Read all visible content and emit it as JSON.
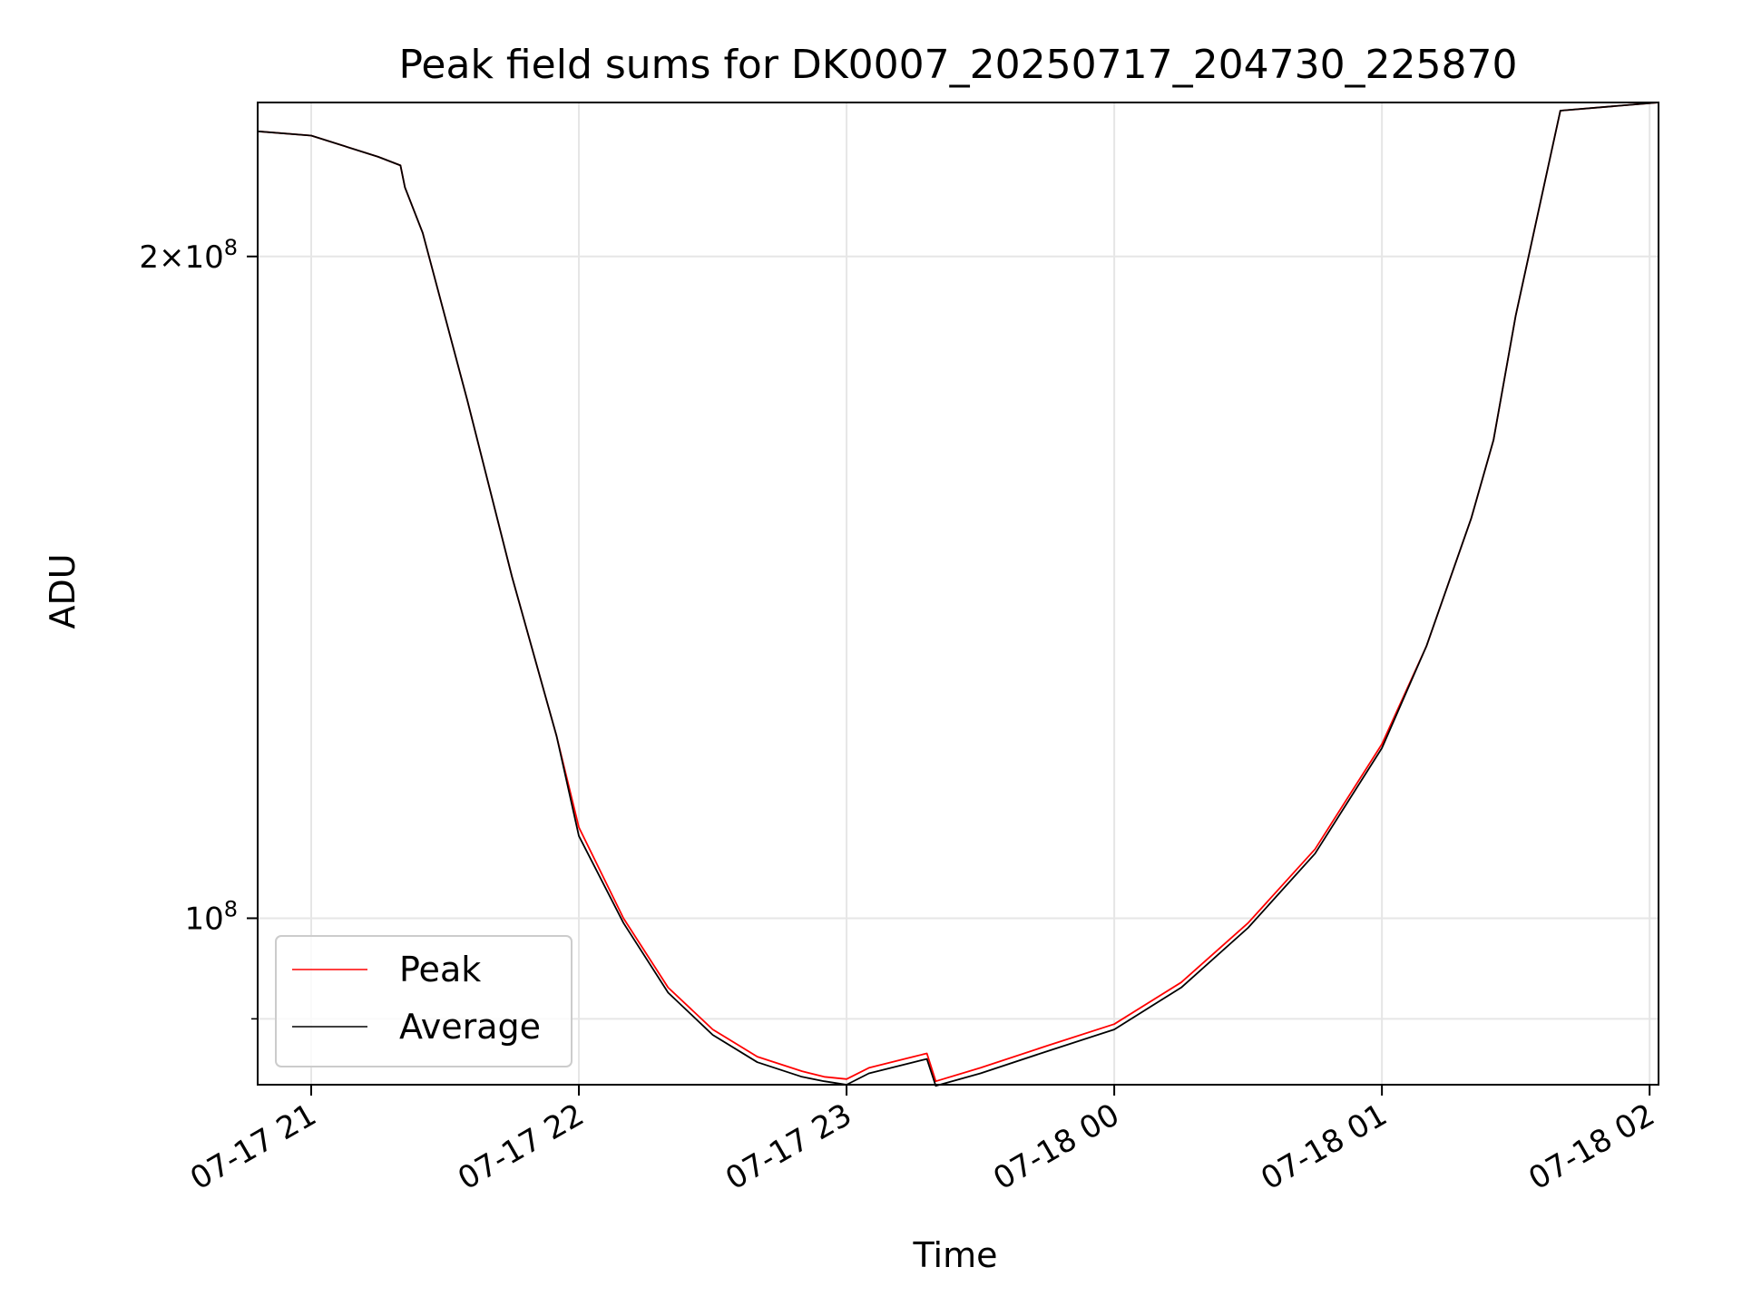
{
  "chart_data": {
    "type": "line",
    "title": "Peak field sums for DK0007_20250717_204730_225870",
    "xlabel": "Time",
    "ylabel": "ADU",
    "yscale": "log",
    "grid": true,
    "legend_position": "lower-left",
    "x_ticks": [
      "07-17 21",
      "07-17 22",
      "07-17 23",
      "07-18 00",
      "07-18 01",
      "07-18 02"
    ],
    "y_tick_labels": [
      {
        "value": 200000000,
        "label": "2×10⁸",
        "base": "2×10",
        "exp": "8"
      },
      {
        "value": 100000000,
        "label": "10⁸",
        "base": "10",
        "exp": "8"
      }
    ],
    "y_minor_ticks": [
      90000000
    ],
    "xlim": [
      "2025-07-17T20:48",
      "2025-07-18T02:02"
    ],
    "ylim": [
      84000000,
      235000000
    ],
    "series": [
      {
        "name": "Peak",
        "color": "#ff0000",
        "x": [
          "2025-07-17T20:48",
          "2025-07-17T21:00",
          "2025-07-17T21:15",
          "2025-07-17T21:20",
          "2025-07-17T21:21",
          "2025-07-17T21:25",
          "2025-07-17T21:35",
          "2025-07-17T21:45",
          "2025-07-17T21:55",
          "2025-07-17T22:00",
          "2025-07-17T22:10",
          "2025-07-17T22:20",
          "2025-07-17T22:30",
          "2025-07-17T22:40",
          "2025-07-17T22:50",
          "2025-07-17T22:55",
          "2025-07-17T23:00",
          "2025-07-17T23:05",
          "2025-07-17T23:15",
          "2025-07-17T23:18",
          "2025-07-17T23:20",
          "2025-07-17T23:30",
          "2025-07-17T23:45",
          "2025-07-18T00:00",
          "2025-07-18T00:15",
          "2025-07-18T00:30",
          "2025-07-18T00:45",
          "2025-07-18T01:00",
          "2025-07-18T01:10",
          "2025-07-18T01:20",
          "2025-07-18T01:25",
          "2025-07-18T01:30",
          "2025-07-18T01:40",
          "2025-07-18T02:02"
        ],
        "values": [
          228000000,
          227000000,
          222000000,
          220000000,
          215000000,
          205000000,
          172000000,
          143000000,
          121000000,
          110000000,
          100000000,
          93000000,
          89000000,
          86500000,
          85200000,
          84700000,
          84500000,
          85500000,
          86500000,
          86800000,
          84300000,
          85500000,
          87500000,
          89500000,
          93500000,
          99500000,
          107500000,
          120000000,
          133000000,
          152000000,
          165000000,
          188000000,
          233000000,
          235000000
        ]
      },
      {
        "name": "Average",
        "color": "#000000",
        "x": [
          "2025-07-17T20:48",
          "2025-07-17T21:00",
          "2025-07-17T21:15",
          "2025-07-17T21:20",
          "2025-07-17T21:21",
          "2025-07-17T21:25",
          "2025-07-17T21:35",
          "2025-07-17T21:45",
          "2025-07-17T21:55",
          "2025-07-17T22:00",
          "2025-07-17T22:10",
          "2025-07-17T22:20",
          "2025-07-17T22:30",
          "2025-07-17T22:40",
          "2025-07-17T22:50",
          "2025-07-17T22:55",
          "2025-07-17T23:00",
          "2025-07-17T23:05",
          "2025-07-17T23:15",
          "2025-07-17T23:18",
          "2025-07-17T23:20",
          "2025-07-17T23:30",
          "2025-07-17T23:45",
          "2025-07-18T00:00",
          "2025-07-18T00:15",
          "2025-07-18T00:30",
          "2025-07-18T00:45",
          "2025-07-18T01:00",
          "2025-07-18T01:10",
          "2025-07-18T01:20",
          "2025-07-18T01:25",
          "2025-07-18T01:30",
          "2025-07-18T01:40",
          "2025-07-18T02:02"
        ],
        "values": [
          228000000,
          227000000,
          222000000,
          220000000,
          215000000,
          205000000,
          172000000,
          143000000,
          121000000,
          109000000,
          99500000,
          92500000,
          88500000,
          86000000,
          84700000,
          84300000,
          84000000,
          85000000,
          86000000,
          86300000,
          83900000,
          85000000,
          87000000,
          89000000,
          93000000,
          99000000,
          107000000,
          119500000,
          133000000,
          152000000,
          165000000,
          188000000,
          233000000,
          235000000
        ]
      }
    ]
  }
}
